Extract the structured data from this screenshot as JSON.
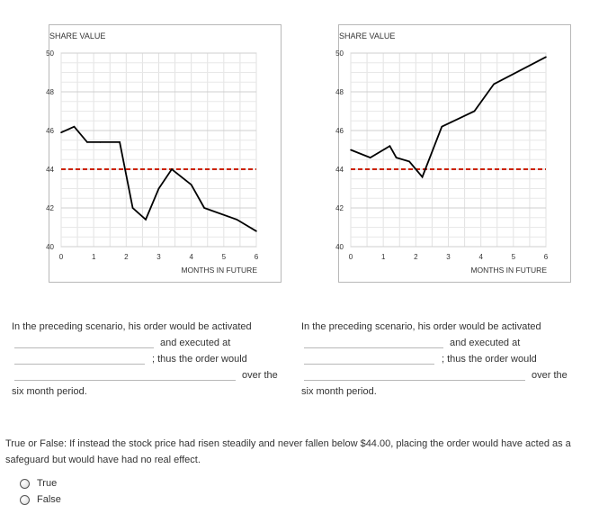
{
  "chart_data": [
    {
      "type": "line",
      "title": "SHARE VALUE",
      "xlabel": "MONTHS IN FUTURE",
      "ylabel": "",
      "xlim": [
        0,
        6
      ],
      "ylim": [
        40,
        50
      ],
      "x_ticks": [
        0,
        1,
        2,
        3,
        4,
        5,
        6
      ],
      "y_ticks": [
        40,
        42,
        44,
        46,
        48,
        50
      ],
      "grid": true,
      "series": [
        {
          "x": [
            0,
            0.4,
            0.8,
            1.2,
            1.8,
            2.2,
            2.6,
            3.0,
            3.4,
            4.0,
            4.4,
            5.4,
            6.0
          ],
          "y": [
            45.9,
            46.2,
            45.4,
            45.4,
            45.4,
            42.0,
            41.4,
            43.0,
            44.0,
            43.2,
            42.0,
            41.4,
            40.8
          ],
          "color": "#000000"
        }
      ],
      "reference_line": {
        "y": 44,
        "style": "dashed",
        "color": "#cc2200"
      }
    },
    {
      "type": "line",
      "title": "SHARE VALUE",
      "xlabel": "MONTHS IN FUTURE",
      "ylabel": "",
      "xlim": [
        0,
        6
      ],
      "ylim": [
        40,
        50
      ],
      "x_ticks": [
        0,
        1,
        2,
        3,
        4,
        5,
        6
      ],
      "y_ticks": [
        40,
        42,
        44,
        46,
        48,
        50
      ],
      "grid": true,
      "series": [
        {
          "x": [
            0,
            0.6,
            1.2,
            1.4,
            1.8,
            2.2,
            2.8,
            3.8,
            4.4,
            6.0
          ],
          "y": [
            45.0,
            44.6,
            45.2,
            44.6,
            44.4,
            43.6,
            46.2,
            47.0,
            48.4,
            49.8
          ],
          "color": "#000000"
        }
      ],
      "reference_line": {
        "y": 44,
        "style": "dashed",
        "color": "#cc2200"
      }
    }
  ],
  "scenarios": [
    {
      "intro": "In the preceding scenario, his order would be activated",
      "executed": "and executed at",
      "thus": "; thus the order would",
      "over": "over the",
      "period": "six month period."
    },
    {
      "intro": "In the preceding scenario, his order would be activated",
      "executed": "and executed at",
      "thus": "; thus the order would",
      "over": "over the",
      "period": "six month period."
    }
  ],
  "question": {
    "text": "True or False: If instead the stock price had risen steadily and never fallen below $44.00, placing the order would have acted as a safeguard but would have had no real effect.",
    "options": [
      "True",
      "False"
    ]
  }
}
